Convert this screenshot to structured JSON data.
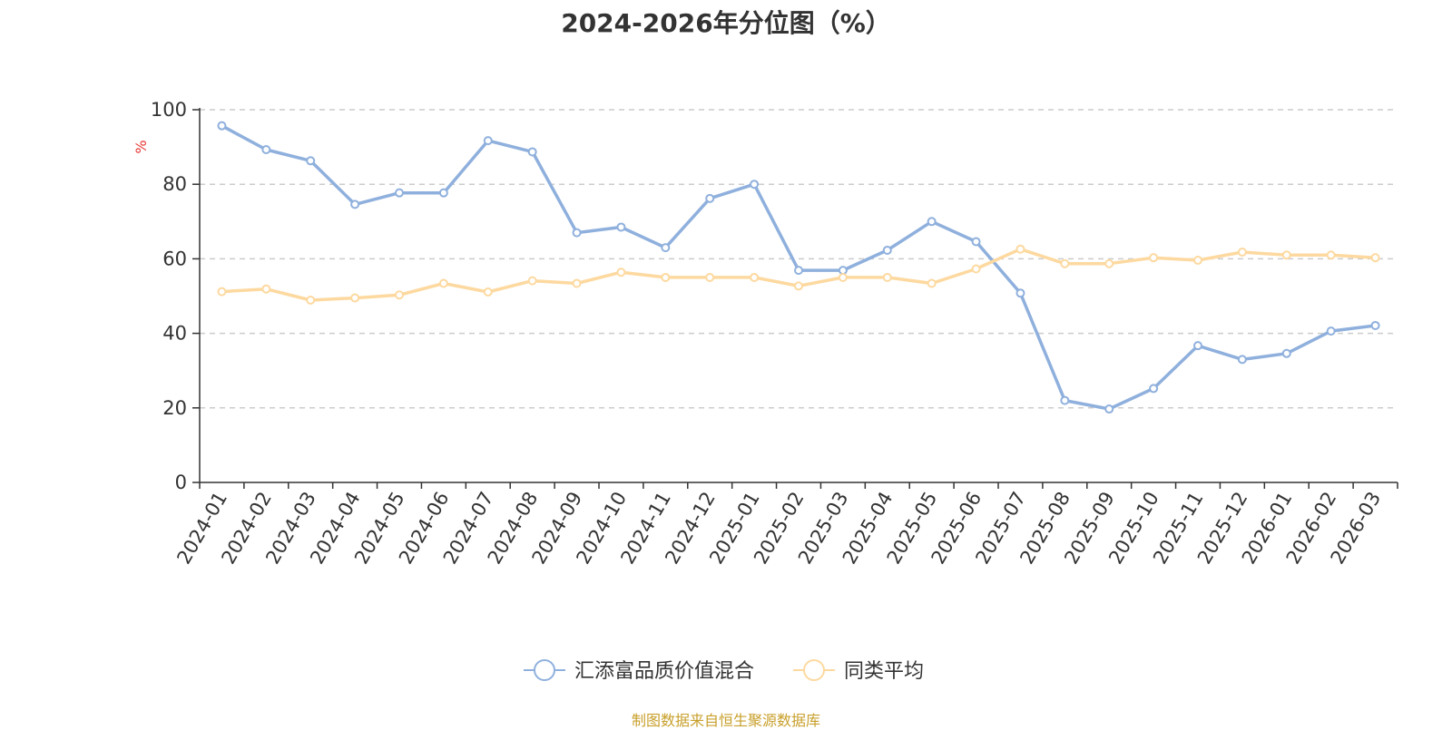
{
  "chart_data": {
    "type": "line",
    "title": "2024-2026年分位图（%）",
    "ylabel": "%",
    "xlabel": "",
    "ylim": [
      0,
      100
    ],
    "yticks": [
      0,
      20,
      40,
      60,
      80,
      100
    ],
    "grid": true,
    "legend_position": "bottom-center",
    "categories": [
      "2024-01",
      "2024-02",
      "2024-03",
      "2024-04",
      "2024-05",
      "2024-06",
      "2024-07",
      "2024-08",
      "2024-09",
      "2024-10",
      "2024-11",
      "2024-12",
      "2025-01",
      "2025-02",
      "2025-03",
      "2025-04",
      "2025-05",
      "2025-06",
      "2025-07",
      "2025-08",
      "2025-09",
      "2025-10",
      "2025-11",
      "2025-12",
      "2026-01",
      "2026-02",
      "2026-03"
    ],
    "series": [
      {
        "name": "汇添富品质价值混合",
        "color": "#8fb0dd",
        "values": [
          95.7,
          89.3,
          86.3,
          74.6,
          77.7,
          77.7,
          91.7,
          88.7,
          67.0,
          68.5,
          63.0,
          76.2,
          80.0,
          56.9,
          56.9,
          62.3,
          70.0,
          64.6,
          50.8,
          22.0,
          19.7,
          25.2,
          36.7,
          33.0,
          34.6,
          40.6,
          42.1
        ]
      },
      {
        "name": "同类平均",
        "color": "#fdd9a0",
        "values": [
          51.2,
          51.9,
          48.9,
          49.5,
          50.3,
          53.4,
          51.1,
          54.1,
          53.4,
          56.4,
          55.0,
          55.0,
          55.0,
          52.7,
          55.0,
          55.0,
          53.4,
          57.3,
          62.6,
          58.7,
          58.7,
          60.3,
          59.6,
          61.8,
          61.0,
          61.0,
          60.3
        ]
      }
    ]
  },
  "source_note": "制图数据来自恒生聚源数据库"
}
